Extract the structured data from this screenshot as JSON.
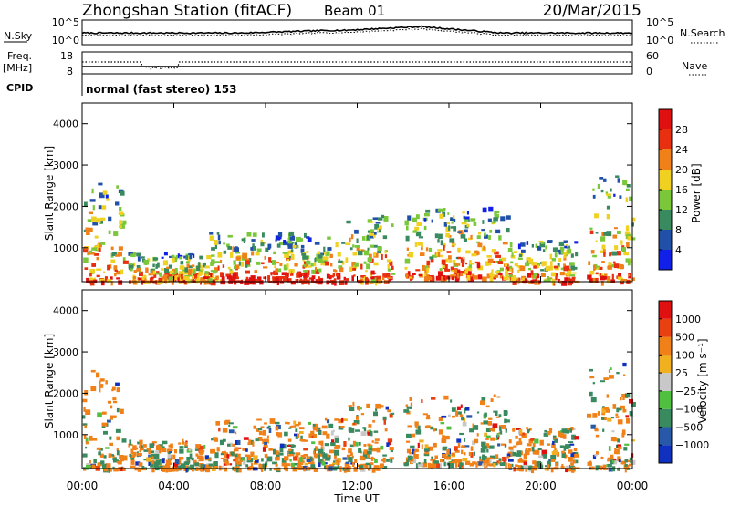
{
  "header": {
    "title": "Zhongshan Station (fitACF)",
    "beam": "Beam 01",
    "date": "20/Mar/2015"
  },
  "noise_panel": {
    "left_label": "N.Sky",
    "right_label": "N.Search",
    "ticks_left": [
      "10^5",
      "10^0"
    ],
    "ticks_right": [
      "10^5",
      "10^0"
    ]
  },
  "freq_panel": {
    "left_label_1": "Freq.",
    "left_label_2": "[MHz]",
    "right_label": "Nave",
    "ticks_left": [
      "18",
      "8"
    ],
    "ticks_right": [
      "60",
      "0"
    ]
  },
  "cpid_panel": {
    "label": "CPID",
    "mode_text": "normal (fast stereo) 153"
  },
  "x_axis": {
    "label": "Time UT",
    "ticks": [
      "00:00",
      "04:00",
      "08:00",
      "12:00",
      "16:00",
      "20:00",
      "00:00"
    ]
  },
  "chart_data": [
    {
      "type": "heatmap",
      "name": "power",
      "ylabel": "Slant Range [km]",
      "yticks": [
        "1000",
        "2000",
        "3000",
        "4000"
      ],
      "ylim": [
        180,
        4500
      ],
      "xlim_hours": [
        0,
        24
      ],
      "colorbar": {
        "label": "Power [dB]",
        "ticks": [
          "4",
          "8",
          "12",
          "16",
          "20",
          "24",
          "28"
        ],
        "colors": [
          "#1020e8",
          "#2050a8",
          "#3a8a60",
          "#7ac83a",
          "#f0d020",
          "#f08018",
          "#e83010",
          "#e01010"
        ]
      },
      "echo_regions": [
        {
          "t0": 0.0,
          "t1": 1.8,
          "r0": 200,
          "r1": 2600
        },
        {
          "t0": 2.0,
          "t1": 5.5,
          "r0": 200,
          "r1": 900
        },
        {
          "t0": 5.5,
          "t1": 11.5,
          "r0": 200,
          "r1": 1400
        },
        {
          "t0": 11.5,
          "t1": 13.5,
          "r0": 200,
          "r1": 1800
        },
        {
          "t0": 14.0,
          "t1": 18.5,
          "r0": 300,
          "r1": 2000
        },
        {
          "t0": 18.5,
          "t1": 21.5,
          "r0": 200,
          "r1": 1200
        },
        {
          "t0": 22.0,
          "t1": 24.0,
          "r0": 200,
          "r1": 2800
        }
      ]
    },
    {
      "type": "heatmap",
      "name": "velocity",
      "ylabel": "Slant Range [km]",
      "yticks": [
        "1000",
        "2000",
        "3000",
        "4000"
      ],
      "ylim": [
        180,
        4500
      ],
      "xlim_hours": [
        0,
        24
      ],
      "colorbar": {
        "label": "Velocity [m s⁻¹]",
        "ticks": [
          "1000",
          "500",
          "100",
          "25",
          "−25",
          "−100",
          "−500",
          "−1000"
        ],
        "colors": [
          "#1030c0",
          "#2858a8",
          "#3a8a60",
          "#50c040",
          "#c8c8c8",
          "#f0b020",
          "#f08018",
          "#e84010",
          "#e01010"
        ]
      },
      "echo_regions": [
        {
          "t0": 0.0,
          "t1": 1.8,
          "r0": 200,
          "r1": 2600
        },
        {
          "t0": 2.0,
          "t1": 5.5,
          "r0": 200,
          "r1": 900
        },
        {
          "t0": 5.5,
          "t1": 11.5,
          "r0": 200,
          "r1": 1400
        },
        {
          "t0": 11.5,
          "t1": 13.5,
          "r0": 200,
          "r1": 1800
        },
        {
          "t0": 14.0,
          "t1": 18.5,
          "r0": 300,
          "r1": 2000
        },
        {
          "t0": 18.5,
          "t1": 21.5,
          "r0": 200,
          "r1": 1200
        },
        {
          "t0": 22.0,
          "t1": 24.0,
          "r0": 200,
          "r1": 2800
        }
      ]
    }
  ]
}
